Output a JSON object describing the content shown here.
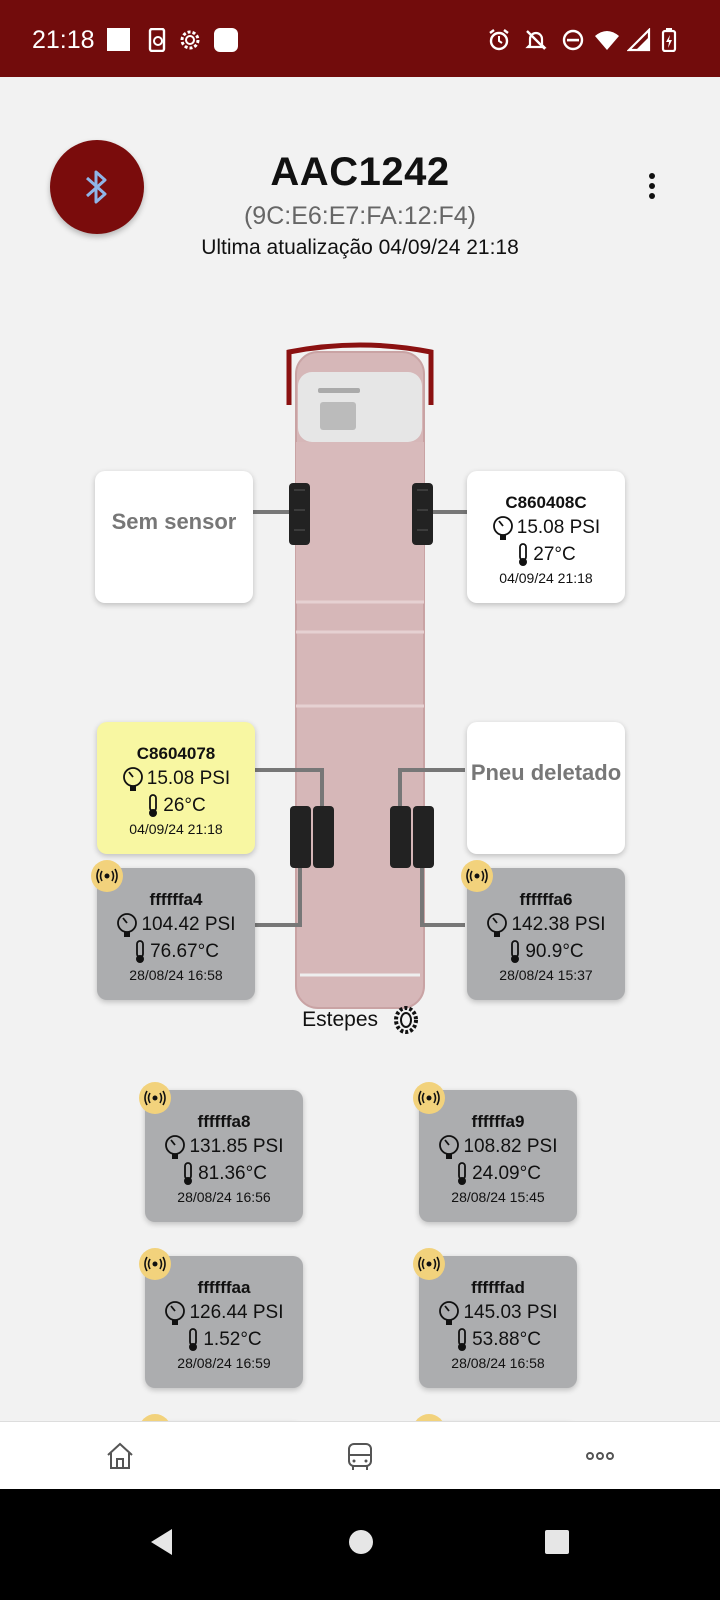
{
  "status_bar": {
    "time": "21:18",
    "left_icons": [
      "square-icon",
      "phone-sync-icon",
      "settings-icon",
      "app-icon"
    ],
    "right_icons": [
      "alarm-icon",
      "notifications-off-icon",
      "do-not-disturb-icon",
      "wifi-icon",
      "signal-icon",
      "battery-charging-icon"
    ]
  },
  "header": {
    "plate": "AAC1242",
    "mac": "(9C:E6:E7:FA:12:F4)",
    "last_update": "Ultima atualização 04/09/24 21:18"
  },
  "colors": {
    "brand": "#720c0c",
    "card_yellow": "#f8f7a2",
    "card_gray": "#acadaf",
    "badge": "#f2d27c"
  },
  "tires": {
    "front_left": {
      "text": "Sem sensor"
    },
    "front_right": {
      "id": "C860408C",
      "pressure": "15.08 PSI",
      "temp": "27°C",
      "date": "04/09/24 21:18"
    },
    "rear_left_outer": {
      "id": "C8604078",
      "pressure": "15.08 PSI",
      "temp": "26°C",
      "date": "04/09/24 21:18"
    },
    "rear_right_outer": {
      "text": "Pneu deletado"
    },
    "rear_left_inner": {
      "id": "ffffffa4",
      "pressure": "104.42 PSI",
      "temp": "76.67°C",
      "date": "28/08/24 16:58"
    },
    "rear_right_inner": {
      "id": "ffffffa6",
      "pressure": "142.38 PSI",
      "temp": "90.9°C",
      "date": "28/08/24 15:37"
    }
  },
  "spares": {
    "label": "Estepes",
    "items": [
      {
        "id": "ffffffa8",
        "pressure": "131.85 PSI",
        "temp": "81.36°C",
        "date": "28/08/24 16:56"
      },
      {
        "id": "ffffffa9",
        "pressure": "108.82 PSI",
        "temp": "24.09°C",
        "date": "28/08/24 15:45"
      },
      {
        "id": "ffffffaa",
        "pressure": "126.44 PSI",
        "temp": "1.52°C",
        "date": "28/08/24 16:59"
      },
      {
        "id": "ffffffad",
        "pressure": "145.03 PSI",
        "temp": "53.88°C",
        "date": "28/08/24 16:58"
      }
    ]
  },
  "bottom_nav": [
    "home-icon",
    "bus-icon",
    "more-icon"
  ]
}
